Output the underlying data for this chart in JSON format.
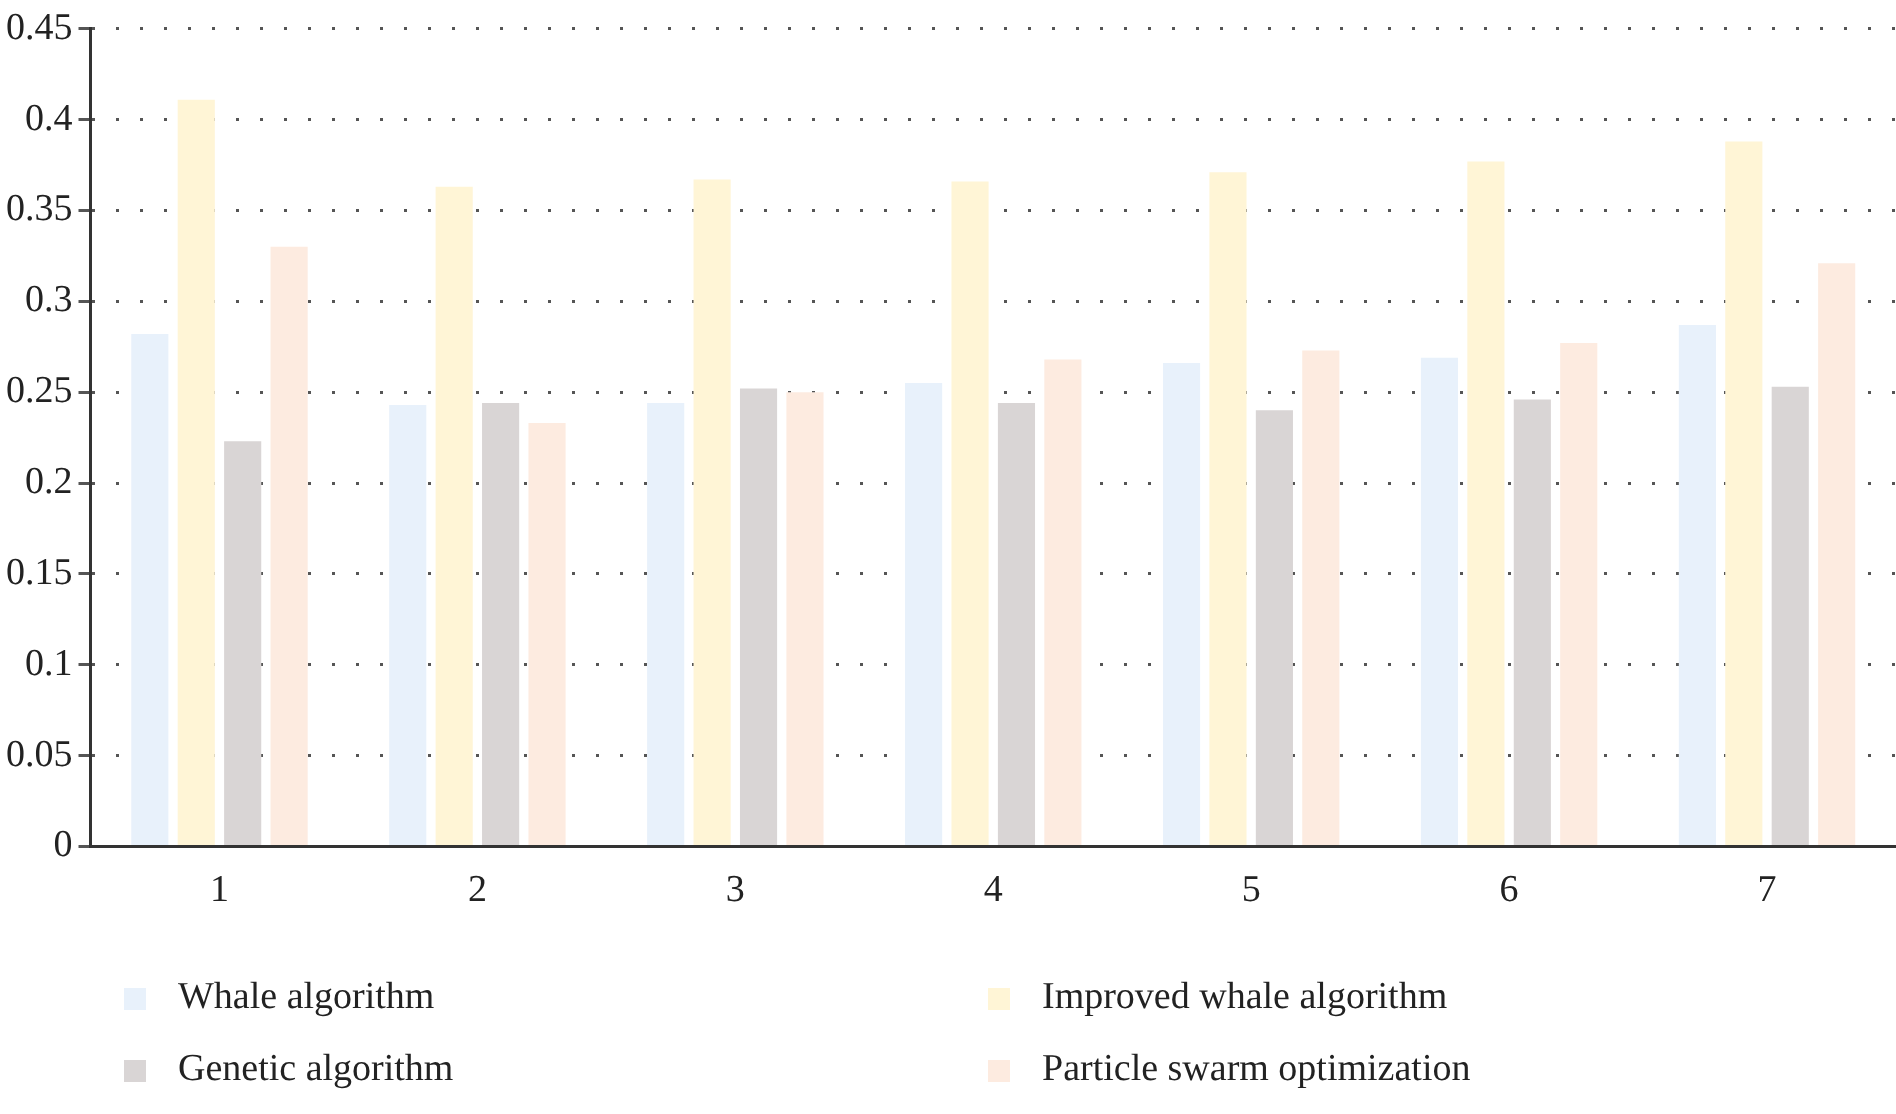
{
  "chart_data": {
    "type": "bar",
    "categories": [
      "1",
      "2",
      "3",
      "4",
      "5",
      "6",
      "7"
    ],
    "series": [
      {
        "name": "Whale algorithm",
        "color": "#e8f1fb",
        "values": [
          0.282,
          0.243,
          0.244,
          0.255,
          0.266,
          0.269,
          0.287
        ]
      },
      {
        "name": "Improved whale algorithm",
        "color": "#fff5d6",
        "values": [
          0.411,
          0.363,
          0.367,
          0.366,
          0.371,
          0.377,
          0.388
        ]
      },
      {
        "name": "Genetic algorithm",
        "color": "#d9d5d5",
        "values": [
          0.223,
          0.244,
          0.252,
          0.244,
          0.24,
          0.246,
          0.253
        ]
      },
      {
        "name": "Particle swarm optimization",
        "color": "#fdebe0",
        "values": [
          0.33,
          0.233,
          0.25,
          0.268,
          0.273,
          0.277,
          0.321
        ]
      }
    ],
    "ylim": [
      0,
      0.45
    ],
    "yticks": [
      0,
      0.05,
      0.1,
      0.15,
      0.2,
      0.25,
      0.3,
      0.35,
      0.4,
      0.45
    ],
    "grid": "y",
    "legend": "bottom"
  }
}
